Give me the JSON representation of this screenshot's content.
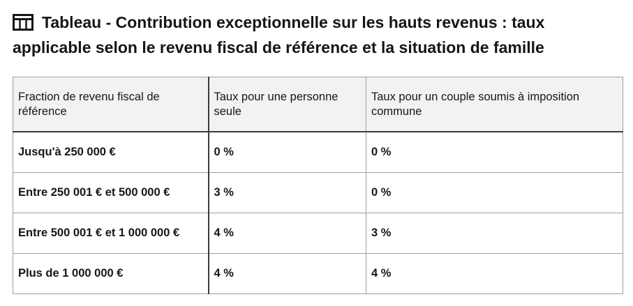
{
  "title": {
    "icon": "table-icon",
    "text": "Tableau - Contribution exceptionnelle sur les hauts revenus : taux applicable selon le revenu fiscal de référence et la situation de famille"
  },
  "table": {
    "headers": [
      "Fraction de revenu fiscal de référence",
      "Taux pour une personne seule",
      "Taux pour un couple soumis à imposition commune"
    ],
    "rows": [
      [
        "Jusqu'à 250 000 €",
        "0 %",
        "0 %"
      ],
      [
        "Entre 250 001 € et 500 000 €",
        "3 %",
        "0 %"
      ],
      [
        "Entre 500 001 € et 1 000 000 €",
        "4 %",
        "3 %"
      ],
      [
        "Plus de 1 000 000 €",
        "4 %",
        "4 %"
      ]
    ]
  }
}
